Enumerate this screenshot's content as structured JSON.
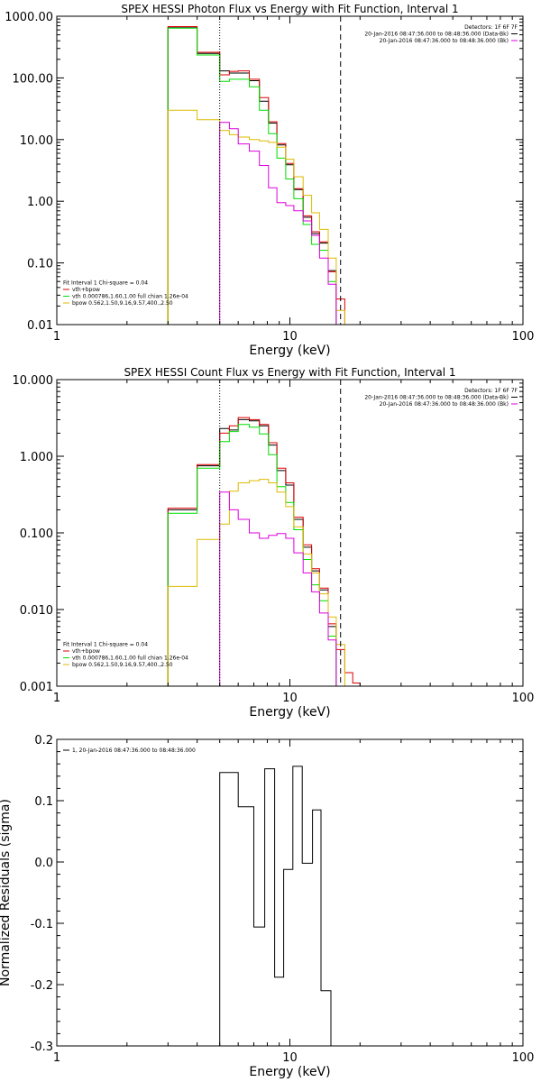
{
  "chart_data": [
    {
      "type": "line",
      "title": "SPEX HESSI Photon Flux vs Energy with Fit Function, Interval 1",
      "xlabel": "Energy (keV)",
      "ylabel": "",
      "xscale": "log",
      "yscale": "log",
      "xlim": [
        1,
        100
      ],
      "ylim": [
        0.01,
        1000
      ],
      "xticks": [
        1,
        10,
        100
      ],
      "xtick_labels": [
        "1",
        "10",
        "100"
      ],
      "yticks": [
        0.01,
        0.1,
        1,
        10,
        100,
        1000
      ],
      "ytick_labels": [
        "0.01",
        "0.10",
        "1.00",
        "10.00",
        "100.00",
        "1000.00"
      ],
      "vlines": [
        {
          "x": 5.0,
          "style": "dotted",
          "color": "#000000"
        },
        {
          "x": 16.5,
          "style": "dashed",
          "color": "#000000"
        }
      ],
      "edges": [
        3,
        4,
        5,
        5.5,
        6,
        6.7,
        7.4,
        8.1,
        8.8,
        9.6,
        10.4,
        11.4,
        12.4,
        13.4,
        14.6,
        15.8,
        17.2,
        18.6,
        20
      ],
      "series": [
        {
          "name": "data",
          "color": "#000000",
          "values": [
            650,
            250,
            130,
            120,
            120,
            90,
            42,
            18.5,
            8.2,
            3.9,
            1.55,
            0.55,
            0.3,
            0.21,
            0.075,
            null,
            null,
            null
          ]
        },
        {
          "name": "vth+bpow",
          "color": "#dd0000",
          "values": [
            680,
            260,
            112,
            128,
            130,
            95,
            48,
            19.5,
            8.6,
            4.1,
            1.6,
            0.58,
            0.32,
            0.22,
            0.072,
            0.026,
            null,
            null
          ]
        },
        {
          "name": "vth",
          "color": "#00dd00",
          "values": [
            640,
            235,
            88,
            95,
            95,
            72,
            30,
            12.5,
            5.0,
            2.3,
            1.1,
            0.42,
            0.2,
            0.16,
            0.05,
            null,
            null,
            null
          ]
        },
        {
          "name": "bpow",
          "color": "#ddbb00",
          "values": [
            30,
            21,
            14,
            12,
            11,
            10,
            9.5,
            9.0,
            7.5,
            4.8,
            2.5,
            1.25,
            0.65,
            0.35,
            0.12,
            0.017,
            null,
            null
          ]
        },
        {
          "name": "residual",
          "color": "#dd00dd",
          "values": [
            null,
            null,
            19,
            15,
            8.5,
            6.5,
            3.8,
            1.65,
            0.95,
            0.85,
            0.7,
            0.48,
            0.28,
            0.12,
            0.045,
            null,
            null,
            null
          ]
        }
      ],
      "legend": {
        "placement": "bottom-left",
        "lines": [
          {
            "text": "Fit Interval  1     Chi-square = 0.04",
            "color": "#000000",
            "swatch": false
          },
          {
            "text": "vth+bpow",
            "color": "#dd0000",
            "swatch": true
          },
          {
            "text": "vth 0.000786,1.60,1.00   full chian 1.26e-04",
            "color": "#00dd00",
            "swatch": true
          },
          {
            "text": "bpow 0.562,1.50,9.16,9.57,400.,2.50",
            "color": "#ddbb00",
            "swatch": true
          }
        ]
      },
      "info": {
        "placement": "top-right",
        "lines": [
          {
            "text": "Detectors: 1F 6F 7F",
            "color": "#000000",
            "swatch": false
          },
          {
            "text": "20-Jan-2016 08:47:36.000 to 08:48:36.000 (Data-Bk)",
            "color": "#000000",
            "swatch": true
          },
          {
            "text": "20-Jan-2016 08:47:36.000 to 08:48:36.000 (Bk)",
            "color": "#dd00dd",
            "swatch": true
          }
        ]
      }
    },
    {
      "type": "line",
      "title": "SPEX HESSI Count Flux vs Energy with Fit Function, Interval 1",
      "xlabel": "Energy (keV)",
      "ylabel": "",
      "xscale": "log",
      "yscale": "log",
      "xlim": [
        1,
        100
      ],
      "ylim": [
        0.001,
        10
      ],
      "xticks": [
        1,
        10,
        100
      ],
      "xtick_labels": [
        "1",
        "10",
        "100"
      ],
      "yticks": [
        0.001,
        0.01,
        0.1,
        1,
        10
      ],
      "ytick_labels": [
        "0.001",
        "0.010",
        "0.100",
        "1.000",
        "10.000"
      ],
      "vlines": [
        {
          "x": 5.0,
          "style": "dotted",
          "color": "#000000"
        },
        {
          "x": 16.5,
          "style": "dashed",
          "color": "#000000"
        }
      ],
      "edges": [
        3,
        4,
        5,
        5.5,
        6,
        6.7,
        7.4,
        8.1,
        8.8,
        9.6,
        10.4,
        11.4,
        12.4,
        13.4,
        14.6,
        15.8,
        17.2,
        18.6,
        20
      ],
      "series": [
        {
          "name": "data",
          "color": "#000000",
          "values": [
            0.2,
            0.75,
            2.3,
            2.2,
            3.0,
            2.9,
            2.5,
            1.4,
            0.65,
            0.42,
            0.15,
            0.065,
            0.032,
            0.018,
            0.006,
            null,
            null,
            null
          ]
        },
        {
          "name": "vth+bpow",
          "color": "#dd0000",
          "values": [
            0.21,
            0.78,
            2.0,
            2.5,
            3.2,
            3.0,
            2.6,
            1.5,
            0.7,
            0.45,
            0.16,
            0.07,
            0.034,
            0.019,
            0.0065,
            0.003,
            0.0015,
            0.0011
          ]
        },
        {
          "name": "vth",
          "color": "#00dd00",
          "values": [
            0.18,
            0.7,
            1.55,
            2.1,
            2.6,
            2.4,
            1.95,
            1.05,
            0.4,
            0.25,
            0.11,
            0.045,
            0.021,
            0.013,
            0.0045,
            null,
            null,
            null
          ]
        },
        {
          "name": "bpow",
          "color": "#ddbb00",
          "values": [
            0.02,
            0.082,
            0.13,
            0.35,
            0.45,
            0.48,
            0.5,
            0.45,
            0.34,
            0.22,
            0.12,
            0.053,
            0.03,
            0.016,
            0.008,
            0.0035,
            null,
            null
          ]
        },
        {
          "name": "residual",
          "color": "#dd00dd",
          "values": [
            null,
            null,
            0.34,
            0.2,
            0.15,
            0.1,
            0.085,
            0.093,
            0.098,
            0.085,
            0.055,
            0.03,
            0.017,
            0.009,
            0.004,
            null,
            null,
            null
          ]
        }
      ],
      "legend": {
        "placement": "bottom-left",
        "lines": [
          {
            "text": "Fit Interval  1     Chi-square = 0.04",
            "color": "#000000",
            "swatch": false
          },
          {
            "text": "vth+bpow",
            "color": "#dd0000",
            "swatch": true
          },
          {
            "text": "vth 0.000786,1.60,1.00   full chian 1.26e-04",
            "color": "#00dd00",
            "swatch": true
          },
          {
            "text": "bpow 0.562,1.50,9.16,9.57,400.,2.50",
            "color": "#ddbb00",
            "swatch": true
          }
        ]
      },
      "info": {
        "placement": "top-right",
        "lines": [
          {
            "text": "Detectors: 1F 6F 7F",
            "color": "#000000",
            "swatch": false
          },
          {
            "text": "20-Jan-2016 08:47:36.000 to 08:48:36.000 (Data-Bk)",
            "color": "#000000",
            "swatch": true
          },
          {
            "text": "20-Jan-2016 08:47:36.000 to 08:48:36.000 (Bk)",
            "color": "#dd00dd",
            "swatch": true
          }
        ]
      }
    },
    {
      "type": "line",
      "title": "",
      "xlabel": "Energy (keV)",
      "ylabel": "Normalized Residuals (sigma)",
      "xscale": "log",
      "yscale": "linear",
      "xlim": [
        1,
        100
      ],
      "ylim": [
        -0.3,
        0.2
      ],
      "xticks": [
        1,
        10,
        100
      ],
      "xtick_labels": [
        "1",
        "10",
        "100"
      ],
      "yticks": [
        -0.3,
        -0.2,
        -0.1,
        0.0,
        0.1,
        0.2
      ],
      "ytick_labels": [
        "-0.3",
        "-0.2",
        "-0.1",
        "0.0",
        "0.1",
        "0.2"
      ],
      "vlines": [],
      "edges": [
        5,
        6,
        7,
        7.8,
        8.6,
        9.4,
        10.3,
        11.3,
        12.5,
        13.6,
        15,
        16.4
      ],
      "series": [
        {
          "name": "1, 20-Jan-2016 08:47:36.000 to 08:48:36.000",
          "color": "#000000",
          "values": [
            0.146,
            0.09,
            -0.106,
            0.152,
            -0.188,
            -0.012,
            0.156,
            -0.002,
            0.085,
            -0.21,
            null
          ]
        }
      ],
      "legend": {
        "placement": "top-left",
        "lines": [
          {
            "text": "1, 20-Jan-2016 08:47:36.000 to 08:48:36.000",
            "color": "#000000",
            "swatch": true
          }
        ]
      },
      "info": {
        "placement": "top-right",
        "lines": []
      }
    }
  ]
}
